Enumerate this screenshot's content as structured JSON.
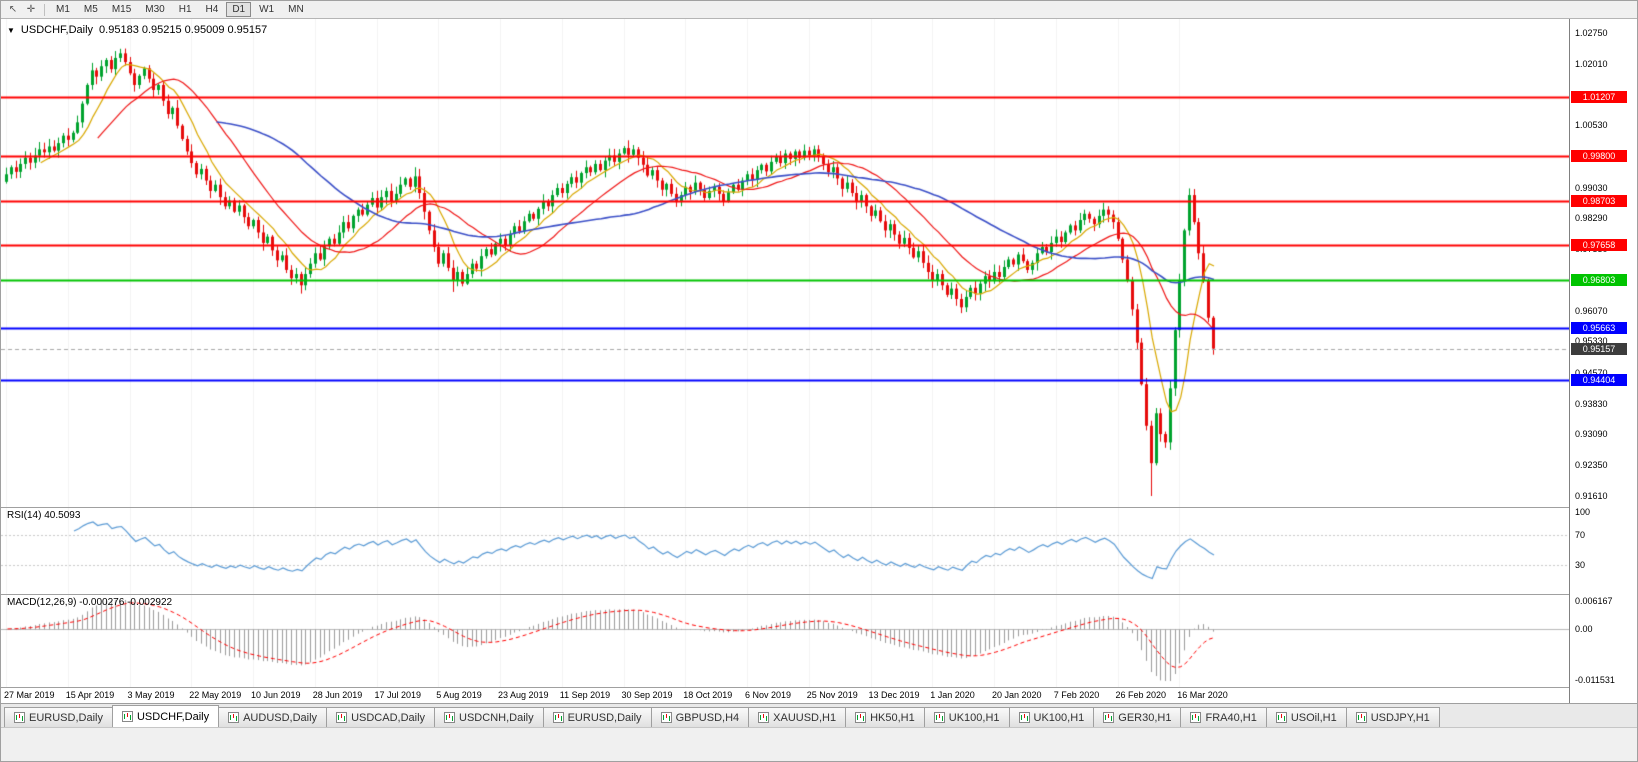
{
  "toolbar": {
    "icons": [
      {
        "name": "cursor-icon",
        "glyph": "↖"
      },
      {
        "name": "crosshair-icon",
        "glyph": "✛"
      }
    ],
    "timeframes": [
      "M1",
      "M5",
      "M15",
      "M30",
      "H1",
      "H4",
      "D1",
      "W1",
      "MN"
    ],
    "active_timeframe": "D1"
  },
  "chart": {
    "menu_icon": "▼",
    "symbol_period": "USDCHF,Daily",
    "ohlc_text": "0.95183 0.95215 0.95009 0.95157",
    "open": "0.95183",
    "high": "0.95215",
    "low": "0.95009",
    "close": "0.95157"
  },
  "price_axis": {
    "ticks": [
      "1.02750",
      "1.02010",
      "1.01270",
      "1.00530",
      "0.99030",
      "0.98290",
      "0.97550",
      "0.96070",
      "0.95330",
      "0.94570",
      "0.93830",
      "0.93090",
      "0.92350",
      "0.91610"
    ]
  },
  "levels": [
    {
      "label": "1.01207",
      "value": 1.01207,
      "color": "#ff0000",
      "width": 2
    },
    {
      "label": "0.99800",
      "value": 0.998,
      "color": "#ff0000",
      "width": 2
    },
    {
      "label": "0.98703",
      "value": 0.98703,
      "color": "#ff0000",
      "width": 2
    },
    {
      "label": "0.97658",
      "value": 0.97658,
      "color": "#ff0000",
      "width": 2
    },
    {
      "label": "0.96803",
      "value": 0.96803,
      "color": "#00c400",
      "width": 2
    },
    {
      "label": "0.95663",
      "value": 0.95663,
      "color": "#0000ff",
      "width": 2
    },
    {
      "label": "0.94404",
      "value": 0.94404,
      "color": "#0000ff",
      "width": 2
    }
  ],
  "current_price": {
    "label": "0.95157",
    "value": 0.95157
  },
  "rsi": {
    "label": "RSI(14) 40.5093",
    "axis": [
      {
        "label": "100",
        "value": 100
      },
      {
        "label": "70",
        "value": 70
      },
      {
        "label": "30",
        "value": 30
      }
    ],
    "guides": [
      70,
      30
    ]
  },
  "macd": {
    "label": "MACD(12,26,9) -0.000276 -0.002922",
    "axis": [
      {
        "label": "0.006167",
        "value": 0.006167
      },
      {
        "label": "0.00",
        "value": 0
      },
      {
        "label": "-0.011531",
        "value": -0.011531
      }
    ]
  },
  "tabs": {
    "items": [
      "EURUSD,Daily",
      "USDCHF,Daily",
      "AUDUSD,Daily",
      "USDCAD,Daily",
      "USDCNH,Daily",
      "EURUSD,Daily",
      "GBPUSD,H4",
      "XAUUSD,H1",
      "HK50,H1",
      "UK100,H1",
      "UK100,H1",
      "GER30,H1",
      "FRA40,H1",
      "USOil,H1",
      "USDJPY,H1"
    ],
    "active_index": 1
  },
  "colors": {
    "up_candle": "#00a32e",
    "down_candle": "#e60c0c",
    "ma": [
      "#d9a800",
      "#f01616",
      "#3c50c8"
    ],
    "rsi_line": "#5b9bd5",
    "macd_histogram": "#9b9b9b",
    "macd_signal": "#ff0000",
    "current_price_bg": "#3c3c3c",
    "grid": "#f3f3f3"
  },
  "chart_data": {
    "type": "candlestick",
    "title": "USDCHF,Daily",
    "symbol": "USDCHF",
    "period": "Daily",
    "y_range": [
      0.9161,
      1.0275
    ],
    "label_every": 13,
    "x_labels": [
      "27 Mar 2019",
      "15 Apr 2019",
      "3 May 2019",
      "22 May 2019",
      "10 Jun 2019",
      "28 Jun 2019",
      "17 Jul 2019",
      "5 Aug 2019",
      "23 Aug 2019",
      "11 Sep 2019",
      "30 Sep 2019",
      "18 Oct 2019",
      "6 Nov 2019",
      "25 Nov 2019",
      "13 Dec 2019",
      "1 Jan 2020",
      "20 Jan 2020",
      "7 Feb 2020",
      "26 Feb 2020",
      "16 Mar 2020"
    ],
    "closes": [
      0.9935,
      0.9952,
      0.9941,
      0.996,
      0.9975,
      0.9963,
      0.998,
      0.9995,
      0.9988,
      1.0002,
      0.9992,
      1.001,
      1.0028,
      1.0018,
      1.0035,
      1.006,
      1.0105,
      1.015,
      1.0185,
      1.017,
      1.0195,
      1.021,
      1.0188,
      1.0215,
      1.0226,
      1.0205,
      1.0178,
      1.015,
      1.0172,
      1.019,
      1.0165,
      1.0138,
      1.015,
      1.0112,
      1.008,
      1.0095,
      1.0052,
      1.002,
      0.999,
      0.9962,
      0.9935,
      0.9948,
      0.992,
      0.9895,
      0.991,
      0.988,
      0.9858,
      0.9872,
      0.9845,
      0.986,
      0.9832,
      0.981,
      0.9825,
      0.9795,
      0.977,
      0.9785,
      0.9752,
      0.9728,
      0.974,
      0.9705,
      0.9685,
      0.9695,
      0.9668,
      0.9695,
      0.972,
      0.9745,
      0.973,
      0.9762,
      0.978,
      0.9768,
      0.9795,
      0.982,
      0.9805,
      0.9835,
      0.985,
      0.9838,
      0.9862,
      0.9878,
      0.9855,
      0.988,
      0.9895,
      0.987,
      0.9888,
      0.991,
      0.9925,
      0.9905,
      0.993,
      0.989,
      0.9845,
      0.98,
      0.976,
      0.972,
      0.9745,
      0.971,
      0.968,
      0.97,
      0.9672,
      0.9695,
      0.972,
      0.9708,
      0.9738,
      0.9755,
      0.9742,
      0.9768,
      0.978,
      0.9765,
      0.9792,
      0.981,
      0.9798,
      0.9822,
      0.984,
      0.9828,
      0.9852,
      0.987,
      0.9858,
      0.9885,
      0.9902,
      0.989,
      0.9912,
      0.9928,
      0.9915,
      0.9938,
      0.9952,
      0.994,
      0.996,
      0.9945,
      0.9968,
      0.998,
      0.9965,
      0.9985,
      0.9998,
      0.9982,
      0.9995,
      0.9975,
      0.9958,
      0.9932,
      0.9945,
      0.992,
      0.9898,
      0.9912,
      0.9888,
      0.9868,
      0.9885,
      0.9905,
      0.9892,
      0.9915,
      0.9898,
      0.9878,
      0.9895,
      0.9905,
      0.9888,
      0.987,
      0.9892,
      0.991,
      0.9898,
      0.992,
      0.9935,
      0.9922,
      0.9945,
      0.9958,
      0.9942,
      0.9965,
      0.9978,
      0.9962,
      0.9985,
      0.9972,
      0.999,
      0.9975,
      0.9992,
      0.998,
      0.9995,
      0.9978,
      0.996,
      0.994,
      0.9952,
      0.9925,
      0.99,
      0.9915,
      0.989,
      0.9868,
      0.9885,
      0.9858,
      0.9835,
      0.9848,
      0.9822,
      0.98,
      0.9815,
      0.979,
      0.9768,
      0.9782,
      0.9758,
      0.9735,
      0.975,
      0.9722,
      0.97,
      0.968,
      0.9695,
      0.9668,
      0.9645,
      0.966,
      0.9635,
      0.9615,
      0.964,
      0.9662,
      0.9648,
      0.9672,
      0.969,
      0.9678,
      0.97,
      0.9688,
      0.9712,
      0.973,
      0.9718,
      0.9742,
      0.9726,
      0.9705,
      0.9722,
      0.9745,
      0.976,
      0.9748,
      0.977,
      0.9785,
      0.9772,
      0.9795,
      0.9812,
      0.98,
      0.9825,
      0.984,
      0.9828,
      0.9815,
      0.9835,
      0.985,
      0.9838,
      0.982,
      0.978,
      0.973,
      0.968,
      0.961,
      0.953,
      0.943,
      0.933,
      0.924,
      0.936,
      0.931,
      0.929,
      0.942,
      0.956,
      0.968,
      0.98,
      0.9885,
      0.982,
      0.9745,
      0.968,
      0.959,
      0.95157
    ],
    "wick_overrides": {
      "24": {
        "high": 1.0237
      },
      "62": {
        "low": 0.9648
      },
      "86": {
        "high": 0.9952
      },
      "94": {
        "low": 0.9652
      },
      "130": {
        "high": 1.0003
      },
      "170": {
        "high": 1.0004
      },
      "201": {
        "low": 0.9601
      },
      "241": {
        "low": 0.9161
      },
      "249": {
        "high": 0.9901
      },
      "254": {
        "low": 0.9501
      }
    }
  }
}
